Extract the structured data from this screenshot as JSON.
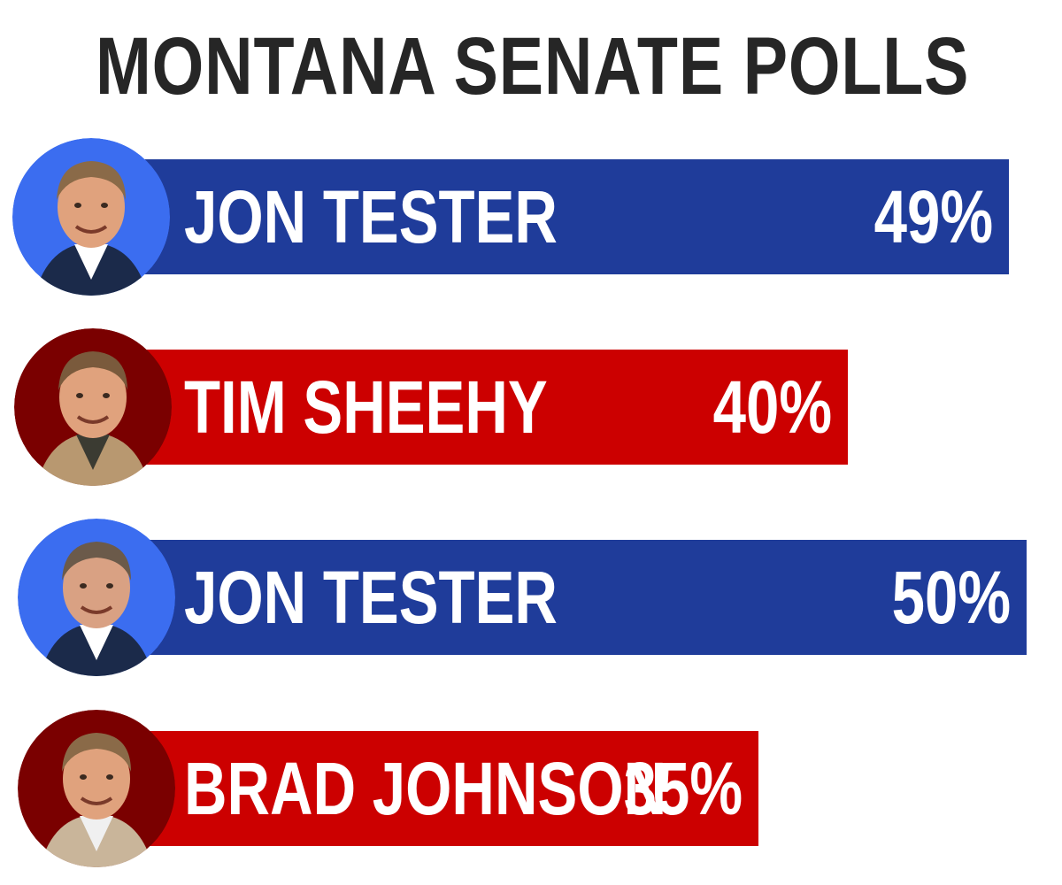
{
  "title": "MONTANA SENATE POLLS",
  "colors": {
    "dem_bar": "#1f3c9a",
    "rep_bar": "#cc0000",
    "dem_ring": "#3b6df0",
    "rep_ring": "#7a0000",
    "title": "#262626"
  },
  "chart_data": {
    "type": "bar",
    "orientation": "horizontal",
    "title": "MONTANA SENATE POLLS",
    "xlabel": "",
    "ylabel": "",
    "xlim": [
      0,
      50
    ],
    "grid": false,
    "legend": "none",
    "categories": [
      "JON TESTER",
      "TIM SHEEHY",
      "JON TESTER",
      "BRAD JOHNSON"
    ],
    "values": [
      49,
      40,
      50,
      35
    ],
    "labels": [
      "49%",
      "40%",
      "50%",
      "35%"
    ],
    "bar_colors": [
      "dem_bar",
      "rep_bar",
      "dem_bar",
      "rep_bar"
    ],
    "avatar_icons": [
      "jon-tester-photo-icon",
      "tim-sheehy-photo-icon",
      "jon-tester-photo-icon",
      "brad-johnson-photo-icon"
    ]
  }
}
